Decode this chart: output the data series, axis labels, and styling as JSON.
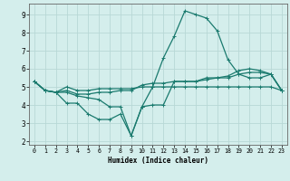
{
  "xlabel": "Humidex (Indice chaleur)",
  "background_color": "#d4eeec",
  "grid_color": "#b8d8d6",
  "line_color": "#1a7a6e",
  "xlim": [
    -0.5,
    23.5
  ],
  "ylim": [
    1.8,
    9.6
  ],
  "yticks": [
    2,
    3,
    4,
    5,
    6,
    7,
    8,
    9
  ],
  "xticks": [
    0,
    1,
    2,
    3,
    4,
    5,
    6,
    7,
    8,
    9,
    10,
    11,
    12,
    13,
    14,
    15,
    16,
    17,
    18,
    19,
    20,
    21,
    22,
    23
  ],
  "series": [
    {
      "x": [
        0,
        1,
        2,
        3,
        4,
        5,
        6,
        7,
        8,
        9,
        10,
        11,
        12,
        13,
        14,
        15,
        16,
        17,
        18,
        19,
        20,
        21,
        22,
        23
      ],
      "y": [
        5.3,
        4.8,
        4.7,
        5.0,
        4.8,
        4.8,
        4.9,
        4.9,
        4.9,
        4.9,
        5.0,
        5.0,
        5.0,
        5.0,
        5.0,
        5.0,
        5.0,
        5.0,
        5.0,
        5.0,
        5.0,
        5.0,
        5.0,
        4.8
      ]
    },
    {
      "x": [
        0,
        1,
        2,
        3,
        4,
        5,
        6,
        7,
        8,
        9,
        10,
        11,
        12,
        13,
        14,
        15,
        16,
        17,
        18,
        19,
        20,
        21,
        22,
        23
      ],
      "y": [
        5.3,
        4.8,
        4.7,
        4.8,
        4.6,
        4.6,
        4.7,
        4.7,
        4.8,
        4.8,
        5.1,
        5.2,
        5.2,
        5.3,
        5.3,
        5.3,
        5.4,
        5.5,
        5.5,
        5.7,
        5.8,
        5.8,
        5.7,
        4.8
      ]
    },
    {
      "x": [
        0,
        1,
        2,
        3,
        4,
        5,
        6,
        7,
        8,
        9,
        10,
        11,
        12,
        13,
        14,
        15,
        16,
        17,
        18,
        19,
        20,
        21,
        22,
        23
      ],
      "y": [
        5.3,
        4.8,
        4.7,
        4.7,
        4.5,
        4.4,
        4.3,
        3.9,
        3.9,
        2.3,
        3.9,
        5.0,
        6.6,
        7.8,
        9.2,
        9.0,
        8.8,
        8.1,
        6.5,
        5.7,
        5.5,
        5.5,
        5.7,
        4.8
      ]
    },
    {
      "x": [
        0,
        1,
        2,
        3,
        4,
        5,
        6,
        7,
        8,
        9,
        10,
        11,
        12,
        13,
        14,
        15,
        16,
        17,
        18,
        19,
        20,
        21,
        22,
        23
      ],
      "y": [
        5.3,
        4.8,
        4.7,
        4.1,
        4.1,
        3.5,
        3.2,
        3.2,
        3.5,
        2.3,
        3.9,
        4.0,
        4.0,
        5.3,
        5.3,
        5.3,
        5.5,
        5.5,
        5.6,
        5.9,
        6.0,
        5.9,
        5.7,
        4.8
      ]
    }
  ]
}
